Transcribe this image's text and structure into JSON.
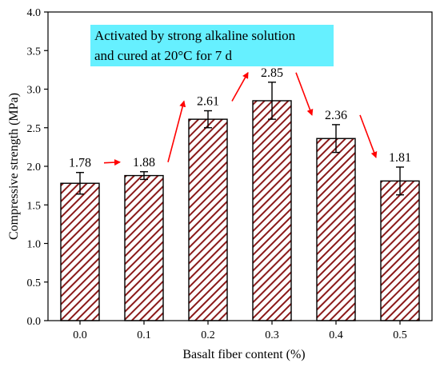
{
  "chart_data": {
    "type": "bar",
    "categories": [
      "0.0",
      "0.1",
      "0.2",
      "0.3",
      "0.4",
      "0.5"
    ],
    "values": [
      1.78,
      1.88,
      2.61,
      2.85,
      2.36,
      1.81
    ],
    "error": [
      0.14,
      0.05,
      0.11,
      0.24,
      0.18,
      0.18
    ],
    "data_labels": [
      "1.78",
      "1.88",
      "2.61",
      "2.85",
      "2.36",
      "1.81"
    ],
    "xlabel": "Basalt fiber content (%)",
    "ylabel": "Compressive strength (MPa)",
    "ylim": [
      0,
      4.0
    ],
    "yticks": [
      "0.0",
      "0.5",
      "1.0",
      "1.5",
      "2.0",
      "2.5",
      "3.0",
      "3.5",
      "4.0"
    ],
    "annotation": [
      "Activated by strong alkaline solution",
      "and cured at 20°C for 7 d"
    ],
    "bar_fill": "hatched",
    "colors": {
      "bar_hatch": "#8b1a1a",
      "bar_outline": "#000000",
      "arrow": "#ff0000",
      "annotation_bg": "#66f0ff"
    }
  }
}
